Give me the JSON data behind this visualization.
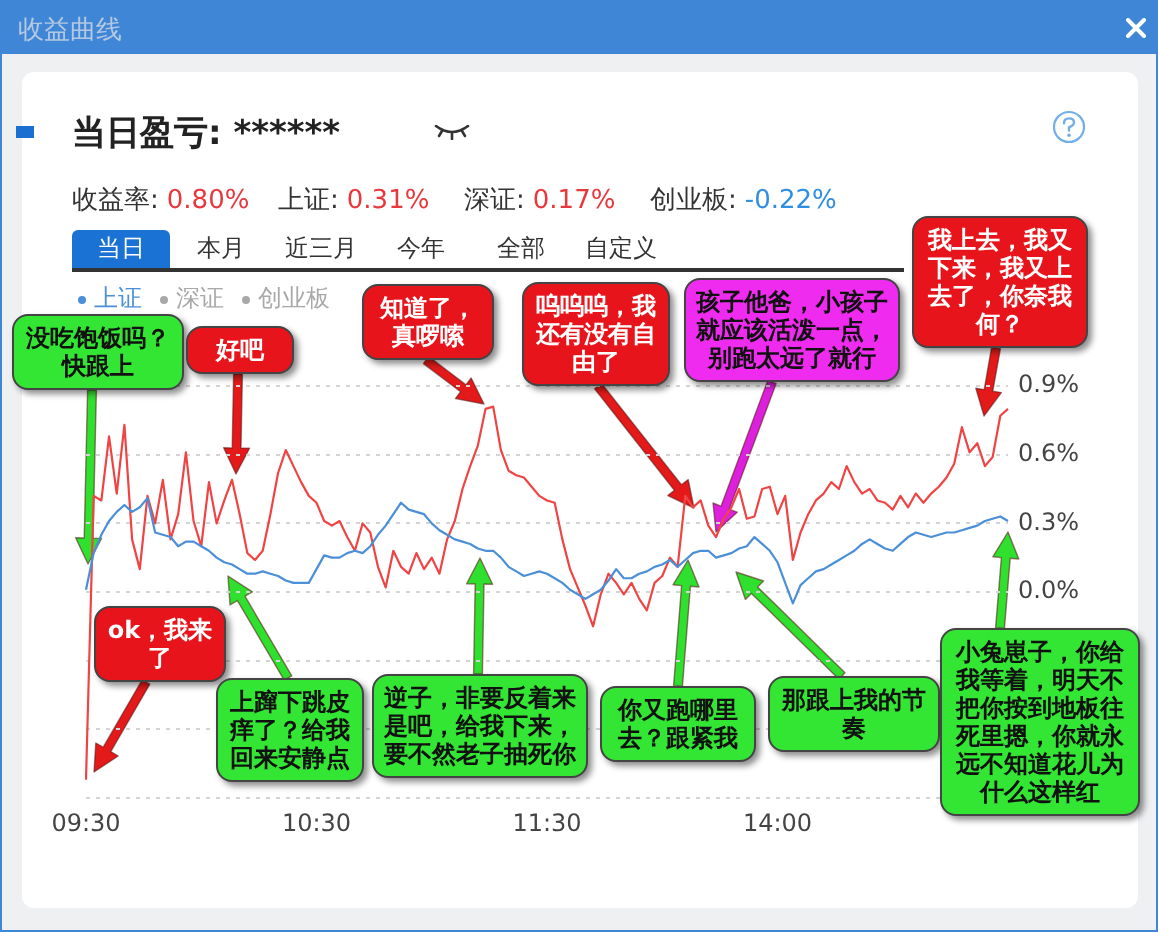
{
  "chart_data": {
    "type": "line",
    "title": "收益曲线",
    "subtitle": "当日盈亏: ******",
    "annotations": [
      "收益率:",
      "0.80%",
      "上证:",
      "0.31%",
      "深证:",
      "0.17%",
      "创业板:",
      "-0.22%",
      "当日",
      "本月",
      "近三月",
      "今年",
      "全部",
      "自定义",
      "深证",
      "创业板",
      "没吃饱饭吗？快跟上",
      "好吧",
      "ok，我来了",
      "上蹿下跳皮痒了？给我回来安静点",
      "知道了，真啰嗦",
      "逆子，非要反着来是吧，给我下来，要不然老子抽死你",
      "呜呜呜，我还有没有自由了",
      "孩子他爸，小孩子就应该活泼一点，别跑太远了就行",
      "你又跑哪里去？跟紧我",
      "那跟上我的节奏",
      "我上去，我又下来，我又上去了，你奈我何？",
      "小兔崽子，你给我等着，明天不把你按到地板往死里摁，你就永远不知道花儿为什么这样红"
    ],
    "categories": [
      "09:30",
      null,
      null,
      null,
      null,
      null,
      null,
      null,
      null,
      null,
      null,
      null,
      null,
      null,
      null,
      null,
      null,
      null,
      null,
      null,
      null,
      null,
      null,
      null,
      null,
      null,
      null,
      null,
      null,
      null,
      "10:30",
      null,
      null,
      null,
      null,
      null,
      null,
      null,
      null,
      null,
      null,
      null,
      null,
      null,
      null,
      null,
      null,
      null,
      null,
      null,
      null,
      null,
      null,
      null,
      null,
      null,
      null,
      null,
      null,
      null,
      "11:30",
      null,
      null,
      null,
      null,
      null,
      null,
      null,
      null,
      null,
      null,
      null,
      null,
      null,
      null,
      null,
      null,
      null,
      null,
      null,
      null,
      null,
      null,
      null,
      null,
      null,
      null,
      null,
      null,
      null,
      "14:00",
      null,
      null,
      null,
      null,
      null,
      null,
      null,
      null,
      null,
      null,
      null,
      null,
      null,
      null,
      null,
      null,
      null,
      null,
      null,
      null,
      null,
      null,
      null,
      null,
      null,
      null,
      null,
      null,
      null,
      null
    ],
    "series": [
      {
        "name": "上证",
        "color": "#4a8fd8",
        "values": [
          0.01,
          0.17,
          0.25,
          0.31,
          0.35,
          0.38,
          0.35,
          0.37,
          0.41,
          0.26,
          0.25,
          0.24,
          0.2,
          0.22,
          0.22,
          0.2,
          0.18,
          0.15,
          0.13,
          0.12,
          0.1,
          0.08,
          0.08,
          0.09,
          0.08,
          0.07,
          0.05,
          0.04,
          0.04,
          0.04,
          0.1,
          0.16,
          0.15,
          0.15,
          0.17,
          0.18,
          0.17,
          0.2,
          0.25,
          0.29,
          0.34,
          0.39,
          0.36,
          0.35,
          0.34,
          0.3,
          0.27,
          0.25,
          0.23,
          0.22,
          0.21,
          0.19,
          0.18,
          0.18,
          0.15,
          0.11,
          0.09,
          0.07,
          0.08,
          0.09,
          0.08,
          0.06,
          0.04,
          0.01,
          -0.01,
          -0.03,
          -0.01,
          0.01,
          0.05,
          0.1,
          0.06,
          0.06,
          0.08,
          0.09,
          0.11,
          0.12,
          0.14,
          0.11,
          0.14,
          0.17,
          0.18,
          0.18,
          0.15,
          0.16,
          0.17,
          0.19,
          0.2,
          0.24,
          0.21,
          0.18,
          0.13,
          0.04,
          -0.05,
          0.03,
          0.06,
          0.09,
          0.1,
          0.12,
          0.14,
          0.16,
          0.18,
          0.21,
          0.23,
          0.21,
          0.19,
          0.18,
          0.21,
          0.24,
          0.26,
          0.25,
          0.24,
          0.25,
          0.26,
          0.26,
          0.27,
          0.28,
          0.29,
          0.31,
          0.32,
          0.33,
          0.31
        ]
      },
      {
        "color": "#f04444",
        "values": [
          -0.82,
          0.42,
          0.4,
          0.68,
          0.43,
          0.73,
          0.23,
          0.1,
          0.42,
          0.3,
          0.49,
          0.23,
          0.34,
          0.61,
          0.31,
          0.2,
          0.48,
          0.3,
          0.4,
          0.49,
          0.34,
          0.17,
          0.14,
          0.18,
          0.34,
          0.52,
          0.62,
          0.55,
          0.48,
          0.42,
          0.39,
          0.31,
          0.29,
          0.31,
          0.24,
          0.18,
          0.3,
          0.26,
          0.11,
          0.02,
          0.18,
          0.11,
          0.08,
          0.17,
          0.1,
          0.15,
          0.08,
          0.23,
          0.31,
          0.45,
          0.55,
          0.64,
          0.8,
          0.81,
          0.62,
          0.53,
          0.51,
          0.5,
          0.46,
          0.42,
          0.4,
          0.39,
          0.23,
          0.1,
          0.02,
          -0.06,
          -0.15,
          -0.01,
          0.08,
          0.04,
          -0.01,
          0.04,
          -0.03,
          -0.08,
          0.04,
          0.07,
          0.15,
          0.11,
          0.42,
          0.37,
          0.4,
          0.29,
          0.24,
          0.32,
          0.37,
          0.45,
          0.32,
          0.33,
          0.45,
          0.46,
          0.34,
          0.42,
          0.14,
          0.26,
          0.34,
          0.4,
          0.43,
          0.48,
          0.45,
          0.55,
          0.48,
          0.43,
          0.45,
          0.4,
          0.39,
          0.36,
          0.42,
          0.37,
          0.43,
          0.39,
          0.43,
          0.46,
          0.5,
          0.56,
          0.72,
          0.61,
          0.65,
          0.55,
          0.59,
          0.77,
          0.8
        ]
      }
    ],
    "ylim": [
      -0.9,
      0.9
    ],
    "yticks": [
      {
        "value": -0.9,
        "label": null
      },
      {
        "value": -0.6,
        "label": null
      },
      {
        "value": -0.3,
        "label": null
      },
      {
        "value": 0,
        "label": "0.0%"
      },
      {
        "value": 0.3,
        "label": "0.3%"
      },
      {
        "value": 0.6,
        "label": "0.6%"
      },
      {
        "value": 0.9,
        "label": "0.9%"
      }
    ],
    "grid": "y",
    "legend": "top left",
    "marker": "none"
  }
}
